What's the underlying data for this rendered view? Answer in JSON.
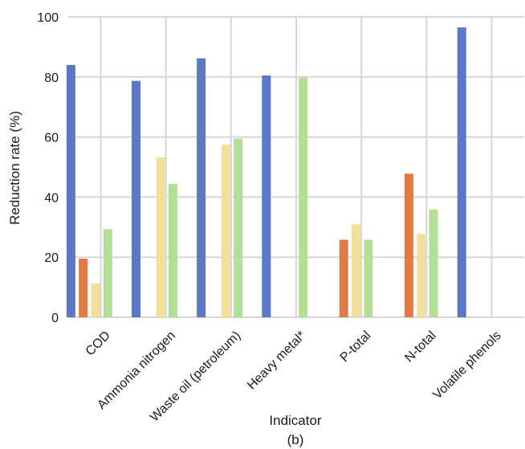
{
  "chart_data": {
    "type": "bar",
    "title": "",
    "xlabel": "Indicator",
    "ylabel": "Reduction rate (%)",
    "caption": "(b)",
    "ylim": [
      0,
      100
    ],
    "yticks": [
      0,
      20,
      40,
      60,
      80,
      100
    ],
    "grid": true,
    "categories": [
      "COD",
      "Ammonia nitrogen",
      "Waste oil (petroleum)",
      "Heavy metal*",
      "P-total",
      "N-total",
      "Volatile phenols"
    ],
    "series": [
      {
        "values": [
          84,
          78.7,
          86.2,
          80.5,
          null,
          null,
          96.5
        ]
      },
      {
        "values": [
          19.5,
          null,
          null,
          null,
          25.8,
          47.8,
          null
        ]
      },
      {
        "values": [
          11.3,
          53.2,
          57.5,
          null,
          31.0,
          27.7,
          null
        ]
      },
      {
        "values": [
          29.3,
          44.4,
          59.5,
          79.8,
          25.8,
          35.9,
          null
        ]
      }
    ],
    "colors": [
      "#5b78c4",
      "#e07b45",
      "#f2e09a",
      "#b2de96"
    ]
  }
}
